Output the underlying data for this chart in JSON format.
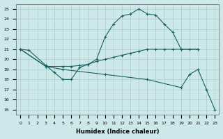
{
  "xlabel": "Humidex (Indice chaleur)",
  "xlim": [
    -0.5,
    23.5
  ],
  "ylim": [
    14.5,
    25.5
  ],
  "yticks": [
    15,
    16,
    17,
    18,
    19,
    20,
    21,
    22,
    23,
    24,
    25
  ],
  "xticks": [
    0,
    1,
    2,
    3,
    4,
    5,
    6,
    7,
    8,
    9,
    10,
    11,
    12,
    13,
    14,
    15,
    16,
    17,
    18,
    19,
    20,
    21,
    22,
    23
  ],
  "bg_color": "#cce8e8",
  "grid_color": "#aacccc",
  "line_color": "#1a5f5f",
  "series": [
    {
      "x": [
        0,
        1,
        3,
        4,
        5,
        6,
        7,
        8,
        9,
        10,
        11,
        12,
        13,
        14,
        15,
        16,
        17,
        18,
        19,
        21
      ],
      "y": [
        21.0,
        20.9,
        19.4,
        18.7,
        18.0,
        18.0,
        19.2,
        19.5,
        20.0,
        22.2,
        23.5,
        24.3,
        24.5,
        25.0,
        24.5,
        24.4,
        23.5,
        22.7,
        21.0,
        21.0
      ]
    },
    {
      "x": [
        0,
        3,
        5,
        6,
        7,
        8,
        9,
        10,
        11,
        12,
        13,
        14,
        15,
        16,
        17,
        18,
        19,
        20,
        21
      ],
      "y": [
        21.0,
        19.3,
        19.3,
        19.3,
        19.4,
        19.5,
        19.8,
        20.0,
        20.2,
        20.4,
        20.6,
        20.8,
        21.0,
        21.0,
        21.0,
        21.0,
        21.0,
        21.0,
        21.0
      ]
    },
    {
      "x": [
        0,
        3,
        5,
        10,
        15,
        19,
        20,
        21,
        22,
        23
      ],
      "y": [
        21.0,
        19.3,
        19.0,
        18.5,
        18.0,
        17.2,
        18.5,
        19.0,
        17.0,
        15.0
      ]
    }
  ]
}
